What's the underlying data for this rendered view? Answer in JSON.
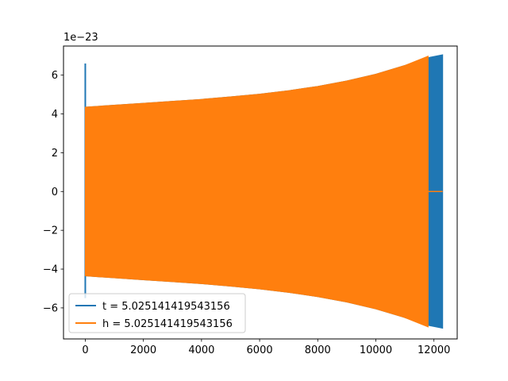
{
  "chart_data": {
    "type": "line",
    "title": "",
    "xlabel": "",
    "ylabel": "",
    "y_offset_label": "1e−23",
    "xlim": [
      -750,
      12800
    ],
    "ylim": [
      -7.6,
      7.5
    ],
    "xticks": [
      0,
      2000,
      4000,
      6000,
      8000,
      10000,
      12000
    ],
    "xtick_labels": [
      "0",
      "2000",
      "4000",
      "6000",
      "8000",
      "10000",
      "12000"
    ],
    "yticks": [
      -6,
      -4,
      -2,
      0,
      2,
      4,
      6
    ],
    "ytick_labels": [
      "−6",
      "−4",
      "−2",
      "0",
      "2",
      "4",
      "6"
    ],
    "grid": false,
    "legend_position": "lower-left",
    "series": [
      {
        "name": "t = 5.025141419543156",
        "color": "#1f77b4",
        "envelope": {
          "x": [
            0,
            1000,
            2000,
            3000,
            4000,
            5000,
            6000,
            7000,
            8000,
            9000,
            10000,
            11000,
            11800,
            12300
          ],
          "upper": [
            4.35,
            4.45,
            4.55,
            4.65,
            4.75,
            4.88,
            5.02,
            5.2,
            5.42,
            5.7,
            6.05,
            6.5,
            6.9,
            7.05
          ],
          "lower": [
            -4.35,
            -4.45,
            -4.55,
            -4.65,
            -4.75,
            -4.88,
            -5.02,
            -5.2,
            -5.42,
            -5.7,
            -6.05,
            -6.5,
            -6.9,
            -7.05
          ]
        },
        "spike": {
          "x": 0,
          "max": 6.6,
          "min": -5.5
        }
      },
      {
        "name": "h = 5.025141419543156",
        "color": "#ff7f0e",
        "envelope": {
          "x": [
            0,
            1000,
            2000,
            3000,
            4000,
            5000,
            6000,
            7000,
            8000,
            9000,
            10000,
            11000,
            11800
          ],
          "upper": [
            4.35,
            4.45,
            4.55,
            4.65,
            4.75,
            4.88,
            5.02,
            5.2,
            5.42,
            5.7,
            6.05,
            6.5,
            6.98
          ],
          "lower": [
            -4.35,
            -4.45,
            -4.55,
            -4.65,
            -4.75,
            -4.88,
            -5.02,
            -5.2,
            -5.42,
            -5.7,
            -6.05,
            -6.5,
            -6.98
          ]
        },
        "flat": {
          "x": [
            11800,
            12300
          ],
          "y": 0
        }
      }
    ]
  }
}
